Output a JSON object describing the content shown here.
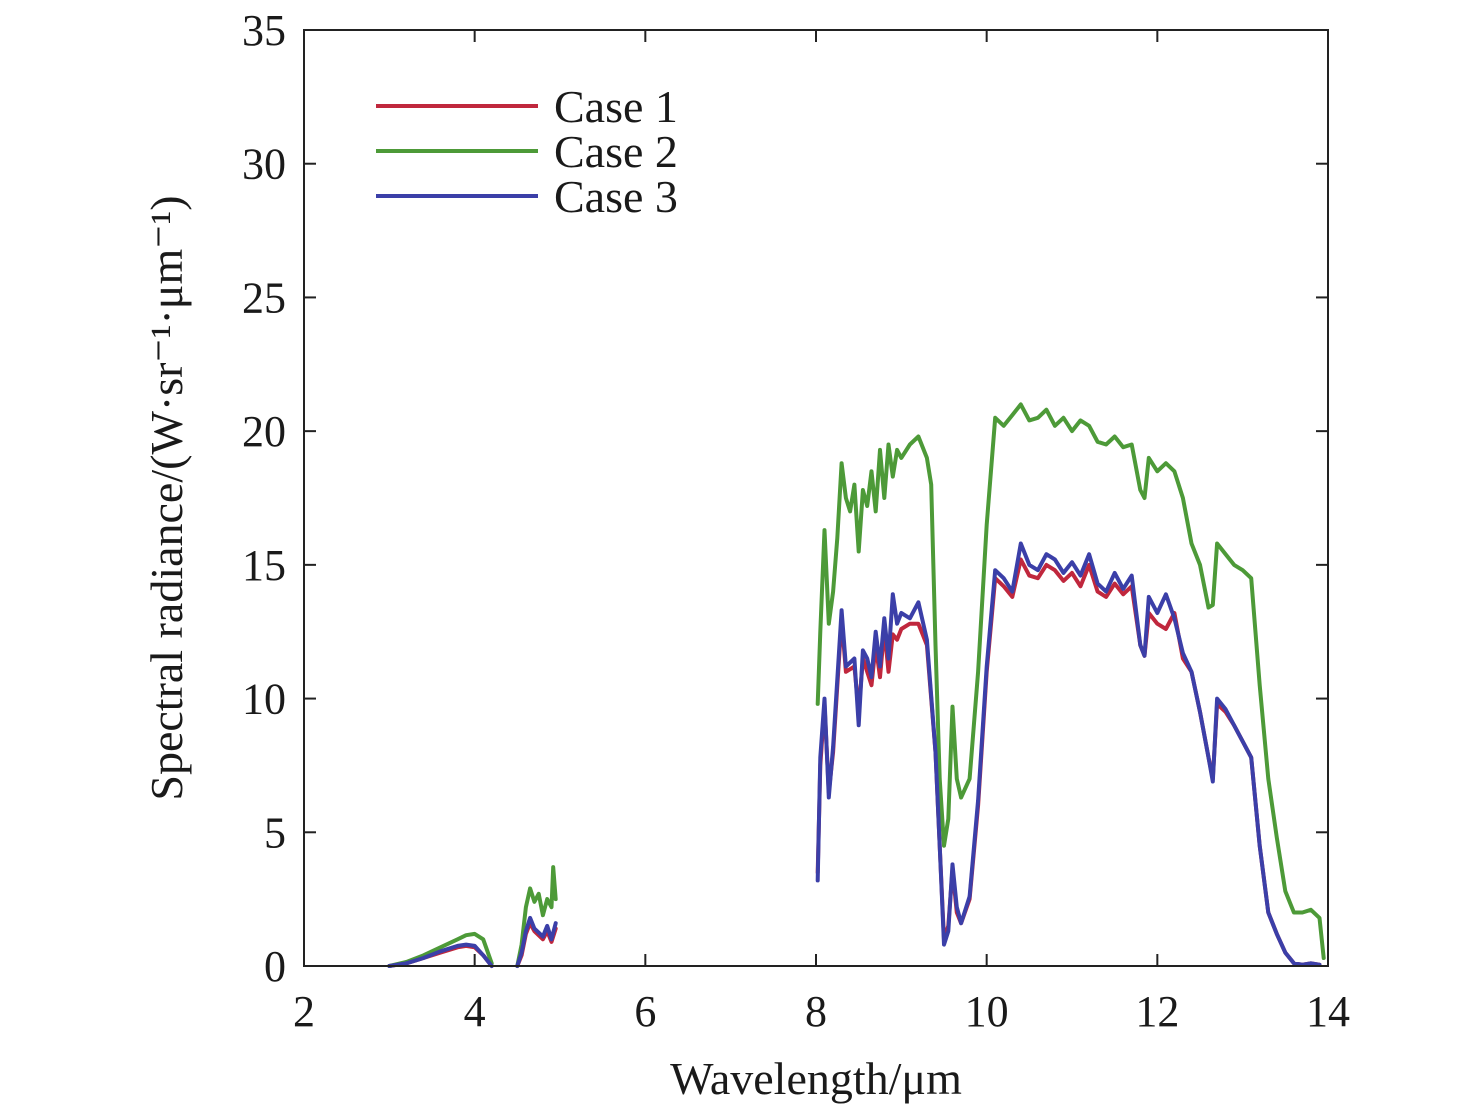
{
  "chart_data": {
    "type": "line",
    "title": "",
    "xlabel": "Wavelength/μm",
    "ylabel": "Spectral radiance/(W·sr⁻¹·μm⁻¹)",
    "xlim": [
      2,
      14
    ],
    "ylim": [
      0,
      35
    ],
    "xticks": [
      2,
      4,
      6,
      8,
      10,
      12,
      14
    ],
    "yticks": [
      0,
      5,
      10,
      15,
      20,
      25,
      30,
      35
    ],
    "grid": false,
    "legend_position": "top-left",
    "series": [
      {
        "name": "Case 1",
        "color": "#c0273d",
        "segments": [
          [
            [
              3.0,
              0.0
            ],
            [
              3.2,
              0.1
            ],
            [
              3.4,
              0.3
            ],
            [
              3.6,
              0.5
            ],
            [
              3.8,
              0.7
            ],
            [
              3.9,
              0.75
            ],
            [
              4.0,
              0.7
            ],
            [
              4.1,
              0.4
            ],
            [
              4.2,
              0.0
            ]
          ],
          [
            [
              4.5,
              0.0
            ],
            [
              4.55,
              0.4
            ],
            [
              4.6,
              1.2
            ],
            [
              4.65,
              1.6
            ],
            [
              4.7,
              1.3
            ],
            [
              4.8,
              1.0
            ],
            [
              4.85,
              1.3
            ],
            [
              4.9,
              0.9
            ],
            [
              4.95,
              1.4
            ]
          ],
          [
            [
              8.02,
              3.5
            ],
            [
              8.05,
              7.5
            ],
            [
              8.1,
              9.8
            ],
            [
              8.15,
              6.5
            ],
            [
              8.2,
              8.0
            ],
            [
              8.3,
              13.0
            ],
            [
              8.35,
              11.0
            ],
            [
              8.45,
              11.2
            ],
            [
              8.5,
              9.5
            ],
            [
              8.55,
              11.5
            ],
            [
              8.6,
              11.0
            ],
            [
              8.65,
              10.5
            ],
            [
              8.7,
              12.0
            ],
            [
              8.75,
              10.8
            ],
            [
              8.8,
              12.6
            ],
            [
              8.85,
              11.0
            ],
            [
              8.9,
              12.4
            ],
            [
              8.95,
              12.2
            ],
            [
              9.0,
              12.6
            ],
            [
              9.1,
              12.8
            ],
            [
              9.2,
              12.8
            ],
            [
              9.3,
              12.0
            ],
            [
              9.4,
              8.0
            ],
            [
              9.45,
              4.5
            ],
            [
              9.5,
              1.0
            ],
            [
              9.55,
              1.5
            ],
            [
              9.6,
              3.6
            ],
            [
              9.65,
              2.0
            ],
            [
              9.7,
              1.6
            ],
            [
              9.8,
              2.5
            ],
            [
              9.9,
              6.0
            ],
            [
              10.0,
              11.0
            ],
            [
              10.1,
              14.5
            ],
            [
              10.2,
              14.2
            ],
            [
              10.3,
              13.8
            ],
            [
              10.4,
              15.2
            ],
            [
              10.5,
              14.6
            ],
            [
              10.6,
              14.5
            ],
            [
              10.7,
              15.0
            ],
            [
              10.8,
              14.8
            ],
            [
              10.9,
              14.4
            ],
            [
              11.0,
              14.7
            ],
            [
              11.1,
              14.2
            ],
            [
              11.2,
              15.0
            ],
            [
              11.3,
              14.0
            ],
            [
              11.4,
              13.8
            ],
            [
              11.5,
              14.3
            ],
            [
              11.6,
              13.9
            ],
            [
              11.7,
              14.2
            ],
            [
              11.8,
              12.0
            ],
            [
              11.85,
              11.6
            ],
            [
              11.9,
              13.2
            ],
            [
              12.0,
              12.8
            ],
            [
              12.1,
              12.6
            ],
            [
              12.2,
              13.2
            ],
            [
              12.3,
              11.5
            ],
            [
              12.4,
              11.0
            ],
            [
              12.5,
              9.5
            ],
            [
              12.6,
              7.8
            ],
            [
              12.65,
              7.0
            ],
            [
              12.7,
              9.8
            ],
            [
              12.8,
              9.5
            ],
            [
              12.9,
              9.0
            ],
            [
              13.0,
              8.4
            ],
            [
              13.1,
              7.8
            ],
            [
              13.2,
              4.5
            ],
            [
              13.3,
              2.0
            ],
            [
              13.4,
              1.2
            ],
            [
              13.5,
              0.5
            ],
            [
              13.6,
              0.1
            ],
            [
              13.7,
              0.05
            ],
            [
              13.8,
              0.1
            ],
            [
              13.9,
              0.05
            ]
          ]
        ]
      },
      {
        "name": "Case 2",
        "color": "#4d9a38",
        "segments": [
          [
            [
              3.0,
              0.0
            ],
            [
              3.2,
              0.15
            ],
            [
              3.4,
              0.4
            ],
            [
              3.6,
              0.7
            ],
            [
              3.8,
              1.0
            ],
            [
              3.9,
              1.15
            ],
            [
              4.0,
              1.2
            ],
            [
              4.1,
              1.0
            ],
            [
              4.2,
              0.1
            ]
          ],
          [
            [
              4.5,
              0.0
            ],
            [
              4.55,
              0.8
            ],
            [
              4.6,
              2.2
            ],
            [
              4.65,
              2.9
            ],
            [
              4.7,
              2.4
            ],
            [
              4.75,
              2.7
            ],
            [
              4.8,
              1.9
            ],
            [
              4.85,
              2.5
            ],
            [
              4.9,
              2.2
            ],
            [
              4.92,
              3.7
            ],
            [
              4.95,
              2.5
            ]
          ],
          [
            [
              8.02,
              9.8
            ],
            [
              8.05,
              12.5
            ],
            [
              8.1,
              16.3
            ],
            [
              8.15,
              12.8
            ],
            [
              8.2,
              14.0
            ],
            [
              8.25,
              16.0
            ],
            [
              8.3,
              18.8
            ],
            [
              8.35,
              17.5
            ],
            [
              8.4,
              17.0
            ],
            [
              8.45,
              18.0
            ],
            [
              8.5,
              15.5
            ],
            [
              8.55,
              17.8
            ],
            [
              8.6,
              17.2
            ],
            [
              8.65,
              18.5
            ],
            [
              8.7,
              17.0
            ],
            [
              8.75,
              19.3
            ],
            [
              8.8,
              17.5
            ],
            [
              8.85,
              19.5
            ],
            [
              8.9,
              18.3
            ],
            [
              8.95,
              19.3
            ],
            [
              9.0,
              19.0
            ],
            [
              9.1,
              19.5
            ],
            [
              9.2,
              19.8
            ],
            [
              9.3,
              19.0
            ],
            [
              9.35,
              18.0
            ],
            [
              9.4,
              12.0
            ],
            [
              9.45,
              7.0
            ],
            [
              9.5,
              4.5
            ],
            [
              9.55,
              5.5
            ],
            [
              9.6,
              9.7
            ],
            [
              9.65,
              7.0
            ],
            [
              9.7,
              6.3
            ],
            [
              9.8,
              7.0
            ],
            [
              9.9,
              11.0
            ],
            [
              10.0,
              16.5
            ],
            [
              10.1,
              20.5
            ],
            [
              10.2,
              20.2
            ],
            [
              10.3,
              20.6
            ],
            [
              10.4,
              21.0
            ],
            [
              10.5,
              20.4
            ],
            [
              10.6,
              20.5
            ],
            [
              10.7,
              20.8
            ],
            [
              10.8,
              20.2
            ],
            [
              10.9,
              20.5
            ],
            [
              11.0,
              20.0
            ],
            [
              11.1,
              20.4
            ],
            [
              11.2,
              20.2
            ],
            [
              11.3,
              19.6
            ],
            [
              11.4,
              19.5
            ],
            [
              11.5,
              19.8
            ],
            [
              11.6,
              19.4
            ],
            [
              11.7,
              19.5
            ],
            [
              11.8,
              17.8
            ],
            [
              11.85,
              17.5
            ],
            [
              11.9,
              19.0
            ],
            [
              12.0,
              18.5
            ],
            [
              12.1,
              18.8
            ],
            [
              12.2,
              18.5
            ],
            [
              12.3,
              17.5
            ],
            [
              12.4,
              15.8
            ],
            [
              12.5,
              15.0
            ],
            [
              12.6,
              13.4
            ],
            [
              12.65,
              13.5
            ],
            [
              12.7,
              15.8
            ],
            [
              12.8,
              15.4
            ],
            [
              12.9,
              15.0
            ],
            [
              13.0,
              14.8
            ],
            [
              13.1,
              14.5
            ],
            [
              13.2,
              10.5
            ],
            [
              13.3,
              7.0
            ],
            [
              13.4,
              4.8
            ],
            [
              13.5,
              2.8
            ],
            [
              13.6,
              2.0
            ],
            [
              13.7,
              2.0
            ],
            [
              13.8,
              2.1
            ],
            [
              13.9,
              1.8
            ],
            [
              13.95,
              0.3
            ]
          ]
        ]
      },
      {
        "name": "Case 3",
        "color": "#3b3fa8",
        "segments": [
          [
            [
              3.0,
              0.0
            ],
            [
              3.2,
              0.1
            ],
            [
              3.4,
              0.3
            ],
            [
              3.6,
              0.55
            ],
            [
              3.8,
              0.75
            ],
            [
              3.9,
              0.8
            ],
            [
              4.0,
              0.75
            ],
            [
              4.1,
              0.4
            ],
            [
              4.2,
              0.0
            ]
          ],
          [
            [
              4.5,
              0.0
            ],
            [
              4.55,
              0.5
            ],
            [
              4.6,
              1.3
            ],
            [
              4.65,
              1.8
            ],
            [
              4.7,
              1.4
            ],
            [
              4.8,
              1.1
            ],
            [
              4.85,
              1.5
            ],
            [
              4.9,
              1.0
            ],
            [
              4.95,
              1.6
            ]
          ],
          [
            [
              8.02,
              3.2
            ],
            [
              8.05,
              7.8
            ],
            [
              8.1,
              10.0
            ],
            [
              8.15,
              6.3
            ],
            [
              8.2,
              8.2
            ],
            [
              8.3,
              13.3
            ],
            [
              8.35,
              11.2
            ],
            [
              8.45,
              11.5
            ],
            [
              8.5,
              9.0
            ],
            [
              8.55,
              11.8
            ],
            [
              8.6,
              11.5
            ],
            [
              8.65,
              10.8
            ],
            [
              8.7,
              12.5
            ],
            [
              8.75,
              11.2
            ],
            [
              8.8,
              13.0
            ],
            [
              8.85,
              11.5
            ],
            [
              8.9,
              13.9
            ],
            [
              8.95,
              12.8
            ],
            [
              9.0,
              13.2
            ],
            [
              9.1,
              13.0
            ],
            [
              9.2,
              13.6
            ],
            [
              9.3,
              12.2
            ],
            [
              9.4,
              8.0
            ],
            [
              9.45,
              4.5
            ],
            [
              9.5,
              0.8
            ],
            [
              9.55,
              1.3
            ],
            [
              9.6,
              3.8
            ],
            [
              9.65,
              2.2
            ],
            [
              9.7,
              1.6
            ],
            [
              9.8,
              2.6
            ],
            [
              9.9,
              6.2
            ],
            [
              10.0,
              11.2
            ],
            [
              10.1,
              14.8
            ],
            [
              10.2,
              14.5
            ],
            [
              10.3,
              14.0
            ],
            [
              10.4,
              15.8
            ],
            [
              10.5,
              15.0
            ],
            [
              10.6,
              14.8
            ],
            [
              10.7,
              15.4
            ],
            [
              10.8,
              15.2
            ],
            [
              10.9,
              14.7
            ],
            [
              11.0,
              15.1
            ],
            [
              11.1,
              14.6
            ],
            [
              11.2,
              15.4
            ],
            [
              11.3,
              14.3
            ],
            [
              11.4,
              14.0
            ],
            [
              11.5,
              14.7
            ],
            [
              11.6,
              14.1
            ],
            [
              11.7,
              14.6
            ],
            [
              11.8,
              12.0
            ],
            [
              11.85,
              11.6
            ],
            [
              11.9,
              13.8
            ],
            [
              12.0,
              13.2
            ],
            [
              12.1,
              13.9
            ],
            [
              12.2,
              13.0
            ],
            [
              12.3,
              11.7
            ],
            [
              12.4,
              11.0
            ],
            [
              12.5,
              9.5
            ],
            [
              12.6,
              7.8
            ],
            [
              12.65,
              6.9
            ],
            [
              12.7,
              10.0
            ],
            [
              12.8,
              9.6
            ],
            [
              12.9,
              9.0
            ],
            [
              13.0,
              8.4
            ],
            [
              13.1,
              7.8
            ],
            [
              13.2,
              4.5
            ],
            [
              13.3,
              2.0
            ],
            [
              13.4,
              1.2
            ],
            [
              13.5,
              0.5
            ],
            [
              13.6,
              0.1
            ],
            [
              13.7,
              0.05
            ],
            [
              13.8,
              0.1
            ],
            [
              13.9,
              0.05
            ]
          ]
        ]
      }
    ]
  }
}
